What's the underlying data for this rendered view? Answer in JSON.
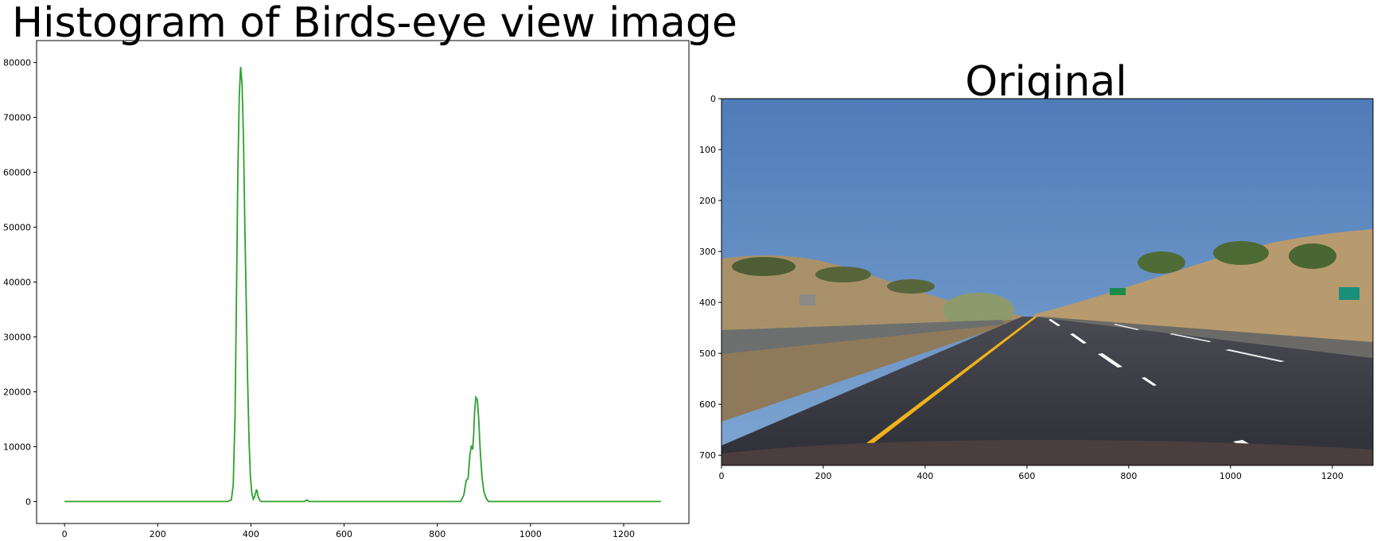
{
  "chart_data": [
    {
      "type": "line",
      "title": "Histogram of Birds-eye view image",
      "xlabel": "",
      "ylabel": "",
      "xlim": [
        -60,
        1340
      ],
      "ylim": [
        -4000,
        84000
      ],
      "xticks": [
        0,
        200,
        400,
        600,
        800,
        1000,
        1200
      ],
      "yticks": [
        0,
        10000,
        20000,
        30000,
        40000,
        50000,
        60000,
        70000,
        80000
      ],
      "grid": false,
      "series": [
        {
          "color": "#2ca02c",
          "x": [
            0,
            350,
            358,
            362,
            366,
            369,
            372,
            375,
            378,
            381,
            384,
            387,
            390,
            393,
            396,
            399,
            402,
            405,
            408,
            412,
            416,
            419,
            422,
            428,
            515,
            520,
            525,
            850,
            857,
            862,
            866,
            870,
            873,
            876,
            878,
            880,
            883,
            886,
            889,
            892,
            896,
            900,
            905,
            910,
            920,
            1280
          ],
          "y": [
            0,
            0,
            300,
            3000,
            16000,
            38000,
            60000,
            74000,
            79200,
            76000,
            66000,
            50000,
            36000,
            22000,
            11000,
            4500,
            1500,
            400,
            900,
            2200,
            800,
            200,
            0,
            0,
            0,
            300,
            0,
            0,
            1200,
            3800,
            4200,
            8500,
            10200,
            9500,
            12000,
            16500,
            19000,
            18500,
            15000,
            9500,
            4500,
            1800,
            600,
            0,
            0,
            0
          ]
        }
      ]
    },
    {
      "type": "image",
      "title": "Original",
      "xlim": [
        0,
        1280
      ],
      "ylim": [
        720,
        0
      ],
      "xticks": [
        0,
        200,
        400,
        600,
        800,
        1000,
        1200
      ],
      "yticks": [
        0,
        100,
        200,
        300,
        400,
        500,
        600,
        700
      ],
      "image_description": "dashcam photo of a highway with yellow left lane line, white dashed lanes, dry hills and blue sky",
      "colors": {
        "sky": "#5b86c0",
        "hills": "#b79a6e",
        "road": "#3a3a44",
        "yellow_line": "#f0b21c",
        "white_line": "#ffffff"
      }
    }
  ]
}
